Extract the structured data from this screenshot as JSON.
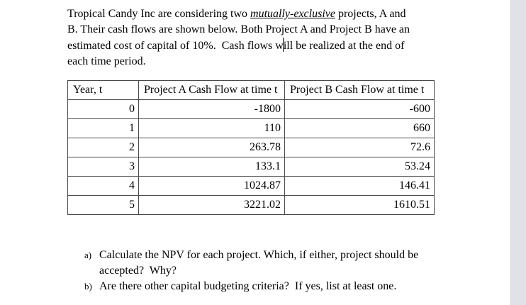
{
  "window": {
    "background": "#ffffff",
    "scrollbar_track_color": "#e1e2e7",
    "scrollbar_edge_color": "#d2d3d7"
  },
  "paragraph": {
    "line1_before": "Tropical Candy Inc are considering two ",
    "line1_emphasis": "mutually-exclusive",
    "line1_after": " projects, A and",
    "line2": "B. Their cash flows are shown below. Both Project A and Project B have an",
    "line3_before": "estimated cost of capital of 10%.  Cash flows w",
    "line3_after": "ill be realized at the end of",
    "line4": "each time period."
  },
  "table": {
    "border_color": "#4a4a4a",
    "headers": {
      "year": "Year, t",
      "project_a": "Project A Cash Flow at time t",
      "project_b": "Project B Cash Flow at time t"
    },
    "rows": [
      {
        "year": "0",
        "project_a": "-1800",
        "project_b": "-600"
      },
      {
        "year": "1",
        "project_a": "110",
        "project_b": "660"
      },
      {
        "year": "2",
        "project_a": "263.78",
        "project_b": "72.6"
      },
      {
        "year": "3",
        "project_a": "133.1",
        "project_b": "53.24"
      },
      {
        "year": "4",
        "project_a": "1024.87",
        "project_b": "146.41"
      },
      {
        "year": "5",
        "project_a": "3221.02",
        "project_b": "1610.51"
      }
    ]
  },
  "questions": [
    {
      "marker": "a)",
      "line1": "Calculate the NPV for each project. Which, if either, project should be",
      "line2": "accepted?  Why?"
    },
    {
      "marker": "b)",
      "line1": "Are there other capital budgeting criteria?  If yes, list at least one."
    }
  ]
}
